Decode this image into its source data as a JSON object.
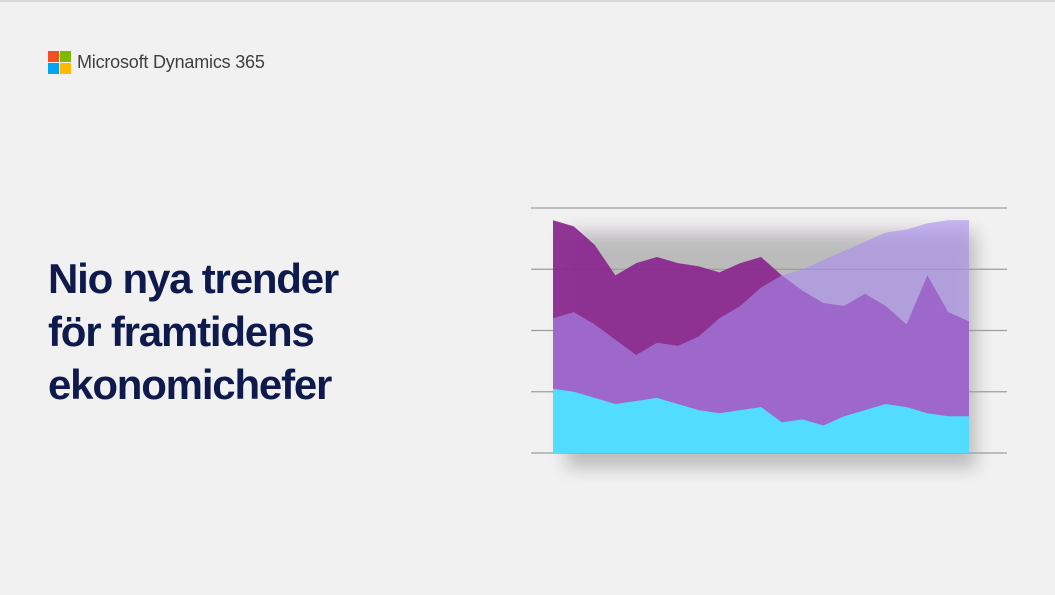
{
  "brand": {
    "name": "Microsoft Dynamics 365",
    "logo_colors": [
      "#f25022",
      "#7fba00",
      "#00a4ef",
      "#ffb900"
    ]
  },
  "headline": {
    "lines": [
      "Nio nya trender",
      "för framtidens",
      "ekonomichefer"
    ],
    "color": "#0e1a4b"
  },
  "chart_data": {
    "type": "area",
    "title": "",
    "xlabel": "",
    "ylabel": "",
    "ylim": [
      0,
      4
    ],
    "grid": true,
    "gridlines": 5,
    "x": [
      0,
      1,
      2,
      3,
      4,
      5,
      6,
      7,
      8,
      9,
      10,
      11,
      12,
      13,
      14,
      15,
      16,
      17,
      18,
      19,
      20
    ],
    "series": [
      {
        "color": "#8a2a8f",
        "values": [
          3.8,
          3.7,
          3.4,
          2.9,
          3.1,
          3.2,
          3.1,
          3.05,
          2.95,
          3.1,
          3.2,
          2.9,
          2.65,
          2.45,
          2.4,
          2.6,
          2.4,
          2.1,
          2.9,
          2.3,
          2.15
        ]
      },
      {
        "color": "#a98cf0",
        "values": [
          2.2,
          2.3,
          2.1,
          1.85,
          1.6,
          1.8,
          1.75,
          1.9,
          2.2,
          2.4,
          2.7,
          2.9,
          3.0,
          3.15,
          3.3,
          3.45,
          3.6,
          3.65,
          3.75,
          3.8,
          3.8
        ]
      },
      {
        "color": "#4ee3ff",
        "values": [
          1.05,
          1.0,
          0.9,
          0.8,
          0.85,
          0.9,
          0.8,
          0.7,
          0.65,
          0.7,
          0.75,
          0.5,
          0.55,
          0.45,
          0.6,
          0.7,
          0.8,
          0.75,
          0.65,
          0.6,
          0.6
        ]
      }
    ]
  }
}
